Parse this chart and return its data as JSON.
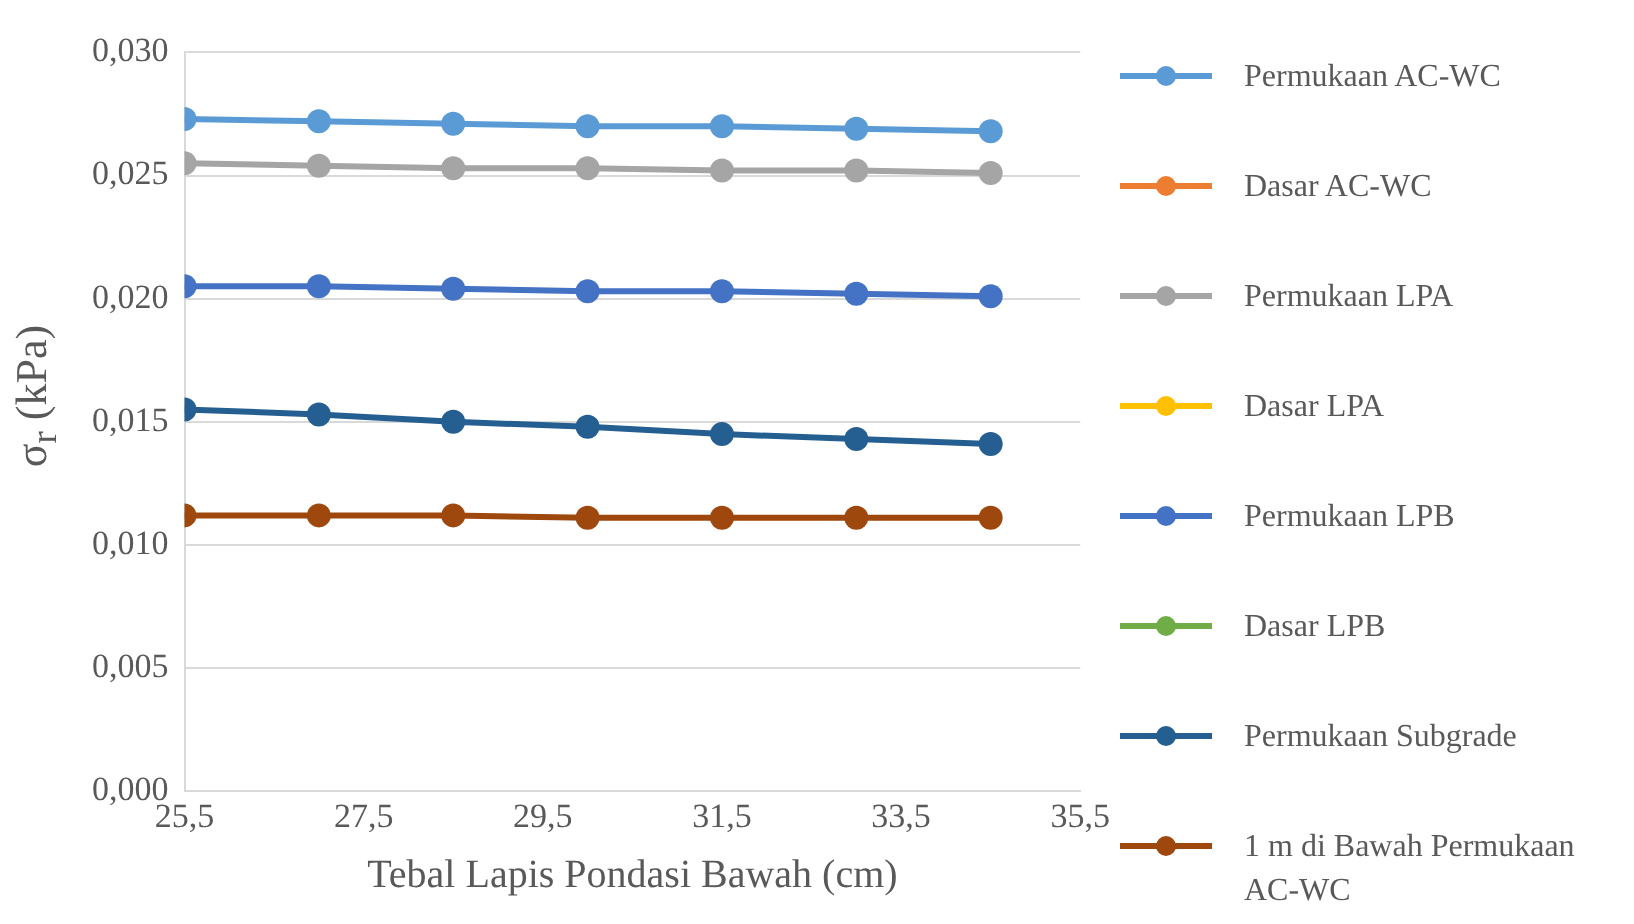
{
  "chart_data": {
    "type": "line",
    "xlabel": "Tebal Lapis Pondasi Bawah (cm)",
    "ylabel": "σ$_{r}$ (kPa)",
    "x": [
      25.5,
      27,
      28.5,
      30,
      31.5,
      33,
      34.5
    ],
    "series": [
      {
        "name": "Permukaan AC-WC",
        "color": "#5b9bd5",
        "values": [
          0.0273,
          0.0272,
          0.0271,
          0.027,
          0.027,
          0.0269,
          0.0268
        ]
      },
      {
        "name": "Dasar AC-WC",
        "color": "#ed7d31",
        "values": [
          null,
          null,
          null,
          null,
          null,
          null,
          null
        ]
      },
      {
        "name": "Permukaan LPA",
        "color": "#a5a5a5",
        "values": [
          0.0255,
          0.0254,
          0.0253,
          0.0253,
          0.0252,
          0.0252,
          0.0251
        ]
      },
      {
        "name": "Dasar LPA",
        "color": "#ffc000",
        "values": [
          null,
          null,
          null,
          null,
          null,
          null,
          null
        ]
      },
      {
        "name": "Permukaan LPB",
        "color": "#4472c4",
        "values": [
          0.0205,
          0.0205,
          0.0204,
          0.0203,
          0.0203,
          0.0202,
          0.0201
        ]
      },
      {
        "name": "Dasar LPB",
        "color": "#70ad47",
        "values": [
          null,
          null,
          null,
          null,
          null,
          null,
          null
        ]
      },
      {
        "name": "Permukaan Subgrade",
        "color": "#255e91",
        "values": [
          0.0155,
          0.0153,
          0.015,
          0.0148,
          0.0145,
          0.0143,
          0.0141
        ]
      },
      {
        "name": "1 m di Bawah Permukaan AC-WC",
        "color": "#9e480e",
        "values": [
          0.0112,
          0.0112,
          0.0112,
          0.0111,
          0.0111,
          0.0111,
          0.0111
        ]
      }
    ],
    "xlim": [
      25.5,
      35.5
    ],
    "xticks": [
      {
        "value": 25.5,
        "label": "25,5"
      },
      {
        "value": 27.5,
        "label": "27,5"
      },
      {
        "value": 29.5,
        "label": "29,5"
      },
      {
        "value": 31.5,
        "label": "31,5"
      },
      {
        "value": 33.5,
        "label": "33,5"
      },
      {
        "value": 35.5,
        "label": "35,5"
      }
    ],
    "ylim": [
      0,
      0.03
    ],
    "yticks": [
      {
        "value": 0,
        "label": "0,000"
      },
      {
        "value": 0.005,
        "label": "0,005"
      },
      {
        "value": 0.01,
        "label": "0,010"
      },
      {
        "value": 0.015,
        "label": "0,015"
      },
      {
        "value": 0.02,
        "label": "0,020"
      },
      {
        "value": 0.025,
        "label": "0,025"
      },
      {
        "value": 0.03,
        "label": "0,030"
      }
    ],
    "grid": "y",
    "legend": "right",
    "marker": "circle",
    "line_style": "solid"
  }
}
